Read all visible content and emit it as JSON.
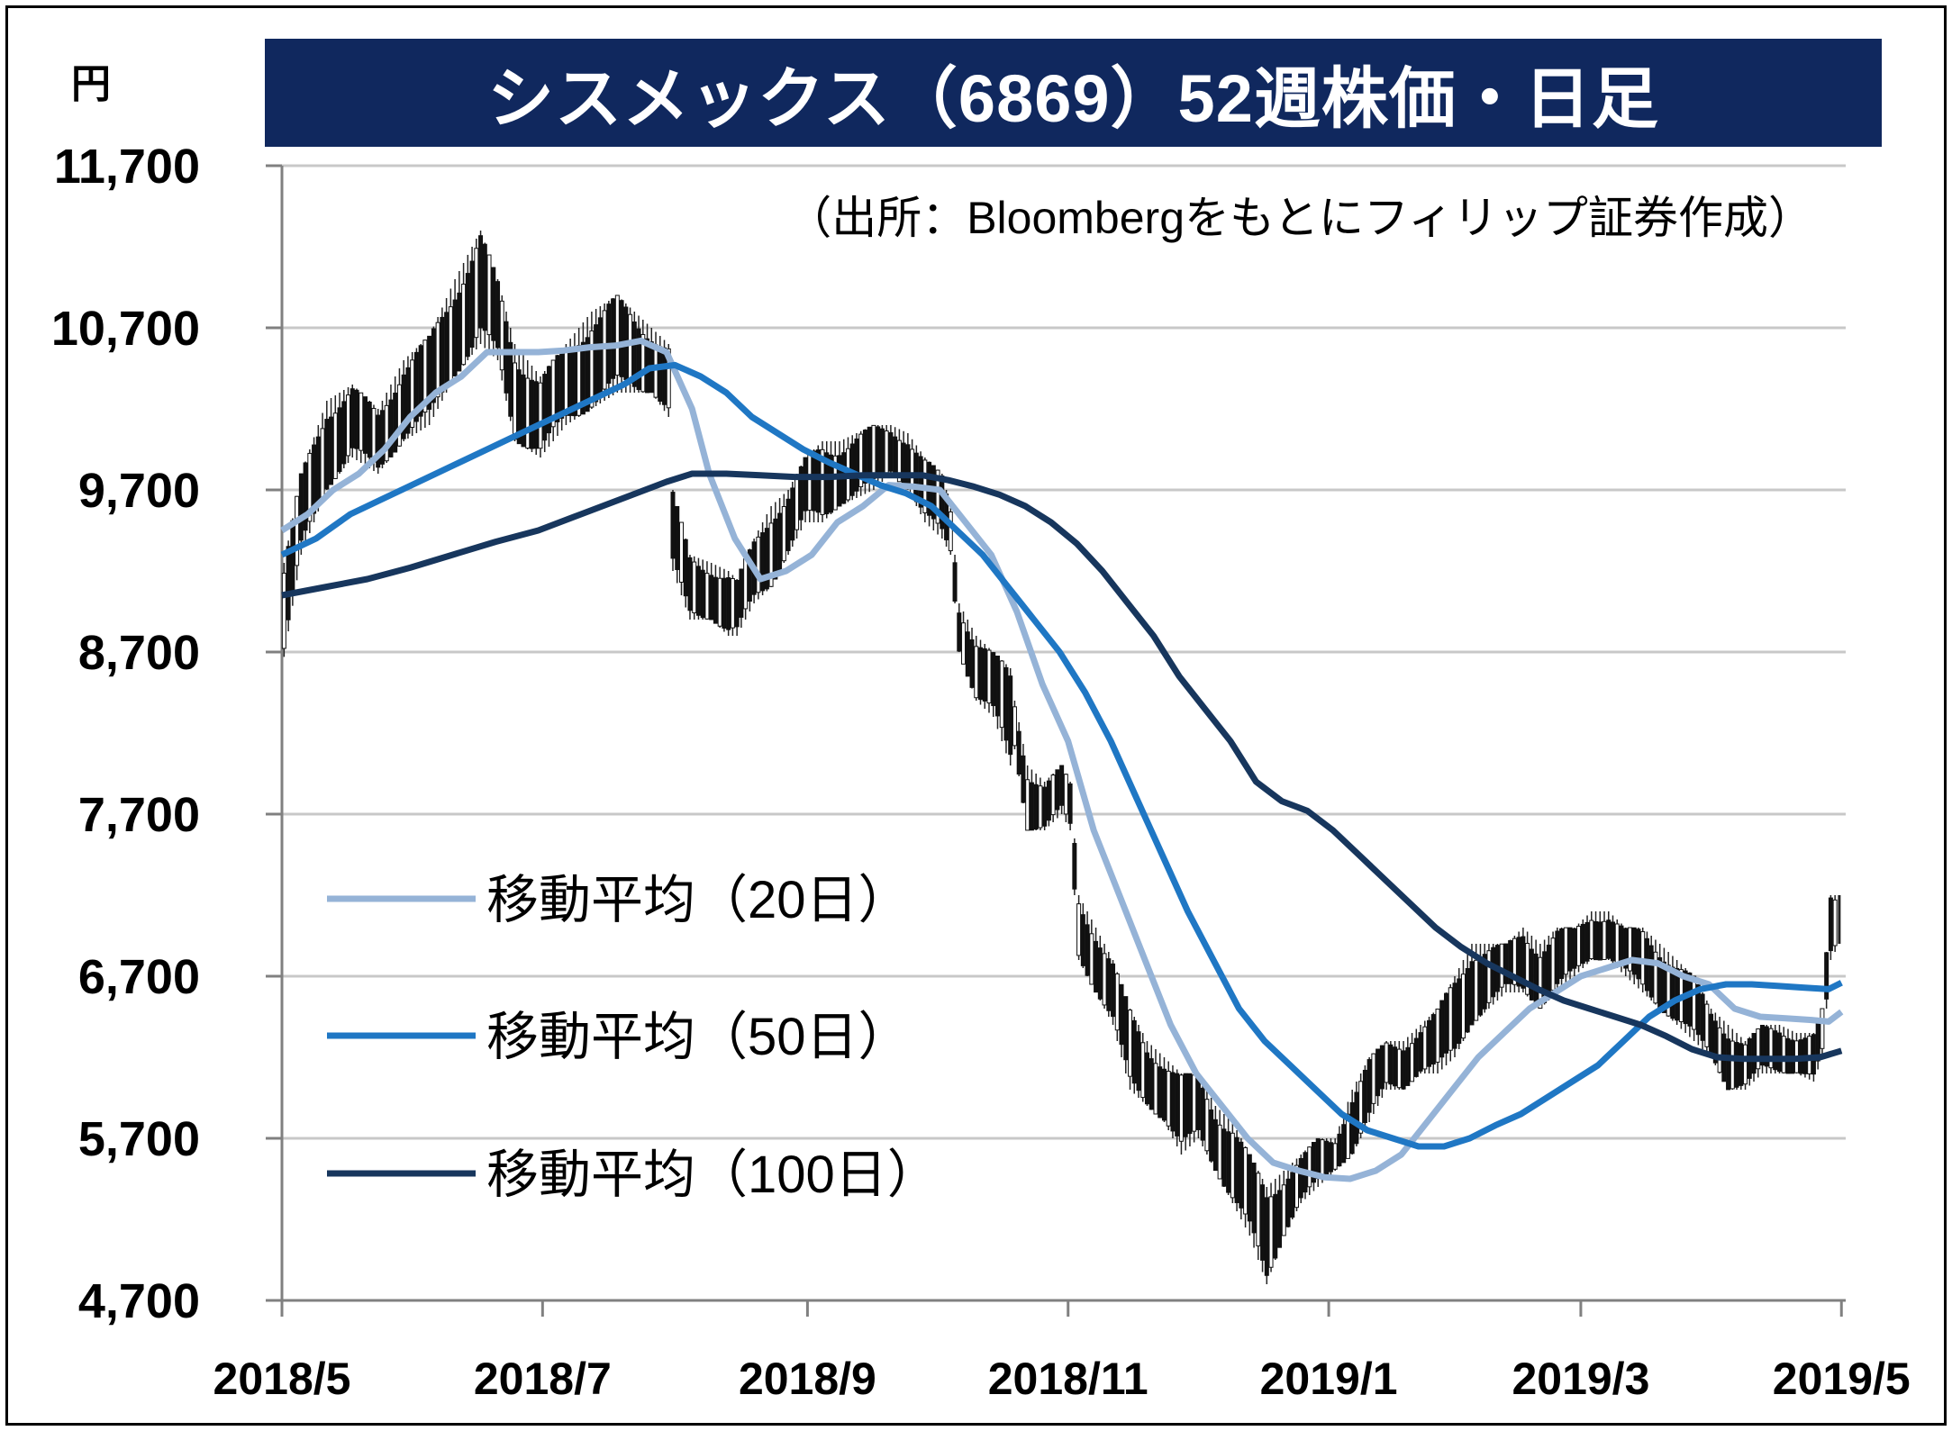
{
  "header": {
    "title": "シスメックス（6869）52週株価・日足",
    "unit": "円",
    "source": "（出所：Bloombergをもとにフィリップ証券作成）"
  },
  "chart_data": {
    "type": "line",
    "title": "シスメックス（6869）52週株価・日足",
    "ylabel": "円",
    "ylim": [
      4700,
      11700
    ],
    "xlim": [
      0,
      366
    ],
    "yticks": [
      11700,
      10700,
      9700,
      8700,
      7700,
      6700,
      5700,
      4700
    ],
    "ytick_labels": [
      "11,700",
      "10,700",
      "9,700",
      "8,700",
      "7,700",
      "6,700",
      "5,700",
      "4,700"
    ],
    "xticks": [
      0,
      61,
      123,
      184,
      245,
      304,
      365
    ],
    "xtick_labels": [
      "2018/5",
      "2018/7",
      "2018/9",
      "2018/11",
      "2019/1",
      "2019/3",
      "2019/5"
    ],
    "grid": "horizontal",
    "legend_position": "left-bottom",
    "price_range": {
      "points": [
        [
          0,
          8670,
          9250
        ],
        [
          4,
          9300,
          9800
        ],
        [
          10,
          9700,
          10250
        ],
        [
          16,
          9900,
          10350
        ],
        [
          22,
          9800,
          10200
        ],
        [
          28,
          10000,
          10500
        ],
        [
          34,
          10100,
          10650
        ],
        [
          40,
          10400,
          11000
        ],
        [
          46,
          10600,
          11300
        ],
        [
          50,
          10500,
          11000
        ],
        [
          54,
          10000,
          10600
        ],
        [
          60,
          9900,
          10400
        ],
        [
          66,
          10100,
          10600
        ],
        [
          72,
          10200,
          10800
        ],
        [
          78,
          10300,
          10900
        ],
        [
          82,
          10300,
          10800
        ],
        [
          86,
          10300,
          10700
        ],
        [
          90,
          10150,
          10600
        ],
        [
          91,
          9200,
          9700
        ],
        [
          95,
          8900,
          9300
        ],
        [
          100,
          8900,
          9250
        ],
        [
          104,
          8800,
          9200
        ],
        [
          106,
          8800,
          9150
        ],
        [
          110,
          9000,
          9400
        ],
        [
          114,
          9100,
          9600
        ],
        [
          118,
          9300,
          9700
        ],
        [
          122,
          9500,
          9900
        ],
        [
          126,
          9500,
          10000
        ],
        [
          130,
          9600,
          10000
        ],
        [
          134,
          9650,
          10050
        ],
        [
          138,
          9700,
          10100
        ],
        [
          142,
          9800,
          10100
        ],
        [
          146,
          9700,
          10050
        ],
        [
          150,
          9500,
          9900
        ],
        [
          154,
          9400,
          9800
        ],
        [
          156,
          9300,
          9600
        ],
        [
          158,
          8700,
          9000
        ],
        [
          162,
          8400,
          8800
        ],
        [
          166,
          8300,
          8700
        ],
        [
          170,
          8000,
          8600
        ],
        [
          171,
          8100,
          8400
        ],
        [
          174,
          7600,
          8000
        ],
        [
          178,
          7600,
          7900
        ],
        [
          182,
          7700,
          8000
        ],
        [
          184,
          7600,
          7900
        ],
        [
          186,
          6800,
          7200
        ],
        [
          190,
          6600,
          7000
        ],
        [
          194,
          6400,
          6800
        ],
        [
          198,
          6000,
          6500
        ],
        [
          202,
          5900,
          6300
        ],
        [
          206,
          5800,
          6200
        ],
        [
          210,
          5600,
          6100
        ],
        [
          214,
          5700,
          6100
        ],
        [
          218,
          5500,
          5900
        ],
        [
          222,
          5300,
          5800
        ],
        [
          226,
          5100,
          5600
        ],
        [
          230,
          4800,
          5400
        ],
        [
          234,
          5100,
          5500
        ],
        [
          238,
          5300,
          5600
        ],
        [
          242,
          5400,
          5700
        ],
        [
          246,
          5500,
          5700
        ],
        [
          250,
          5600,
          6000
        ],
        [
          254,
          5800,
          6200
        ],
        [
          258,
          6000,
          6300
        ],
        [
          262,
          6000,
          6300
        ],
        [
          266,
          6100,
          6400
        ],
        [
          270,
          6100,
          6500
        ],
        [
          274,
          6200,
          6700
        ],
        [
          278,
          6400,
          6900
        ],
        [
          282,
          6500,
          6900
        ],
        [
          286,
          6600,
          6900
        ],
        [
          290,
          6600,
          7000
        ],
        [
          294,
          6500,
          6900
        ],
        [
          298,
          6600,
          7000
        ],
        [
          302,
          6700,
          7000
        ],
        [
          306,
          6800,
          7100
        ],
        [
          310,
          6800,
          7100
        ],
        [
          314,
          6700,
          7000
        ],
        [
          318,
          6600,
          7000
        ],
        [
          322,
          6500,
          6900
        ],
        [
          326,
          6400,
          6800
        ],
        [
          330,
          6300,
          6700
        ],
        [
          334,
          6200,
          6500
        ],
        [
          338,
          6000,
          6400
        ],
        [
          342,
          6000,
          6300
        ],
        [
          346,
          6100,
          6400
        ],
        [
          350,
          6100,
          6400
        ],
        [
          354,
          6100,
          6350
        ],
        [
          358,
          6050,
          6350
        ],
        [
          360,
          6200,
          6500
        ],
        [
          362,
          6800,
          7200
        ],
        [
          364,
          6900,
          7200
        ]
      ]
    },
    "series": [
      {
        "name": "移動平均（20日）",
        "color": "#95b3d7",
        "points": [
          [
            0,
            9450
          ],
          [
            6,
            9550
          ],
          [
            12,
            9700
          ],
          [
            18,
            9800
          ],
          [
            24,
            9950
          ],
          [
            30,
            10150
          ],
          [
            36,
            10300
          ],
          [
            42,
            10400
          ],
          [
            48,
            10550
          ],
          [
            54,
            10550
          ],
          [
            60,
            10550
          ],
          [
            66,
            10560
          ],
          [
            72,
            10580
          ],
          [
            78,
            10590
          ],
          [
            84,
            10620
          ],
          [
            90,
            10550
          ],
          [
            96,
            10200
          ],
          [
            100,
            9800
          ],
          [
            106,
            9400
          ],
          [
            112,
            9150
          ],
          [
            118,
            9200
          ],
          [
            124,
            9300
          ],
          [
            130,
            9500
          ],
          [
            136,
            9600
          ],
          [
            142,
            9730
          ],
          [
            148,
            9720
          ],
          [
            154,
            9700
          ],
          [
            160,
            9500
          ],
          [
            166,
            9300
          ],
          [
            172,
            8950
          ],
          [
            178,
            8500
          ],
          [
            184,
            8150
          ],
          [
            190,
            7600
          ],
          [
            196,
            7200
          ],
          [
            202,
            6800
          ],
          [
            208,
            6400
          ],
          [
            214,
            6100
          ],
          [
            220,
            5900
          ],
          [
            226,
            5700
          ],
          [
            232,
            5550
          ],
          [
            238,
            5500
          ],
          [
            244,
            5460
          ],
          [
            250,
            5450
          ],
          [
            256,
            5500
          ],
          [
            262,
            5600
          ],
          [
            268,
            5800
          ],
          [
            274,
            6000
          ],
          [
            280,
            6200
          ],
          [
            286,
            6350
          ],
          [
            292,
            6500
          ],
          [
            298,
            6600
          ],
          [
            304,
            6700
          ],
          [
            310,
            6750
          ],
          [
            316,
            6800
          ],
          [
            322,
            6780
          ],
          [
            328,
            6700
          ],
          [
            334,
            6650
          ],
          [
            340,
            6500
          ],
          [
            346,
            6450
          ],
          [
            352,
            6440
          ],
          [
            358,
            6430
          ],
          [
            362,
            6420
          ],
          [
            365,
            6480
          ]
        ]
      },
      {
        "name": "移動平均（50日）",
        "color": "#1f77c4",
        "points": [
          [
            0,
            9300
          ],
          [
            8,
            9400
          ],
          [
            16,
            9550
          ],
          [
            24,
            9650
          ],
          [
            32,
            9750
          ],
          [
            40,
            9850
          ],
          [
            48,
            9950
          ],
          [
            56,
            10050
          ],
          [
            64,
            10150
          ],
          [
            72,
            10250
          ],
          [
            80,
            10350
          ],
          [
            86,
            10450
          ],
          [
            92,
            10470
          ],
          [
            98,
            10400
          ],
          [
            104,
            10300
          ],
          [
            110,
            10150
          ],
          [
            116,
            10050
          ],
          [
            122,
            9950
          ],
          [
            128,
            9870
          ],
          [
            134,
            9800
          ],
          [
            140,
            9730
          ],
          [
            146,
            9680
          ],
          [
            152,
            9600
          ],
          [
            158,
            9450
          ],
          [
            164,
            9300
          ],
          [
            170,
            9100
          ],
          [
            176,
            8900
          ],
          [
            182,
            8700
          ],
          [
            188,
            8450
          ],
          [
            194,
            8150
          ],
          [
            200,
            7800
          ],
          [
            206,
            7450
          ],
          [
            212,
            7100
          ],
          [
            218,
            6800
          ],
          [
            224,
            6500
          ],
          [
            230,
            6300
          ],
          [
            236,
            6150
          ],
          [
            242,
            6000
          ],
          [
            248,
            5850
          ],
          [
            254,
            5750
          ],
          [
            260,
            5700
          ],
          [
            266,
            5650
          ],
          [
            272,
            5650
          ],
          [
            278,
            5700
          ],
          [
            284,
            5780
          ],
          [
            290,
            5850
          ],
          [
            296,
            5950
          ],
          [
            302,
            6050
          ],
          [
            308,
            6150
          ],
          [
            314,
            6300
          ],
          [
            320,
            6450
          ],
          [
            326,
            6550
          ],
          [
            332,
            6620
          ],
          [
            338,
            6650
          ],
          [
            344,
            6650
          ],
          [
            350,
            6640
          ],
          [
            356,
            6630
          ],
          [
            362,
            6620
          ],
          [
            365,
            6660
          ]
        ]
      },
      {
        "name": "移動平均（100日）",
        "color": "#17365d",
        "points": [
          [
            0,
            9050
          ],
          [
            10,
            9100
          ],
          [
            20,
            9150
          ],
          [
            30,
            9220
          ],
          [
            40,
            9300
          ],
          [
            50,
            9380
          ],
          [
            60,
            9450
          ],
          [
            70,
            9550
          ],
          [
            80,
            9650
          ],
          [
            90,
            9750
          ],
          [
            96,
            9800
          ],
          [
            104,
            9800
          ],
          [
            112,
            9790
          ],
          [
            120,
            9780
          ],
          [
            128,
            9780
          ],
          [
            136,
            9790
          ],
          [
            144,
            9790
          ],
          [
            150,
            9790
          ],
          [
            156,
            9760
          ],
          [
            162,
            9720
          ],
          [
            168,
            9670
          ],
          [
            174,
            9600
          ],
          [
            180,
            9500
          ],
          [
            186,
            9370
          ],
          [
            192,
            9200
          ],
          [
            198,
            9000
          ],
          [
            204,
            8800
          ],
          [
            210,
            8550
          ],
          [
            216,
            8350
          ],
          [
            222,
            8150
          ],
          [
            228,
            7900
          ],
          [
            234,
            7780
          ],
          [
            240,
            7720
          ],
          [
            246,
            7600
          ],
          [
            252,
            7450
          ],
          [
            258,
            7300
          ],
          [
            264,
            7150
          ],
          [
            270,
            7000
          ],
          [
            276,
            6880
          ],
          [
            282,
            6780
          ],
          [
            288,
            6700
          ],
          [
            294,
            6620
          ],
          [
            300,
            6550
          ],
          [
            306,
            6500
          ],
          [
            312,
            6450
          ],
          [
            318,
            6400
          ],
          [
            324,
            6330
          ],
          [
            330,
            6250
          ],
          [
            336,
            6200
          ],
          [
            342,
            6190
          ],
          [
            348,
            6190
          ],
          [
            354,
            6190
          ],
          [
            360,
            6200
          ],
          [
            365,
            6240
          ]
        ]
      }
    ]
  }
}
